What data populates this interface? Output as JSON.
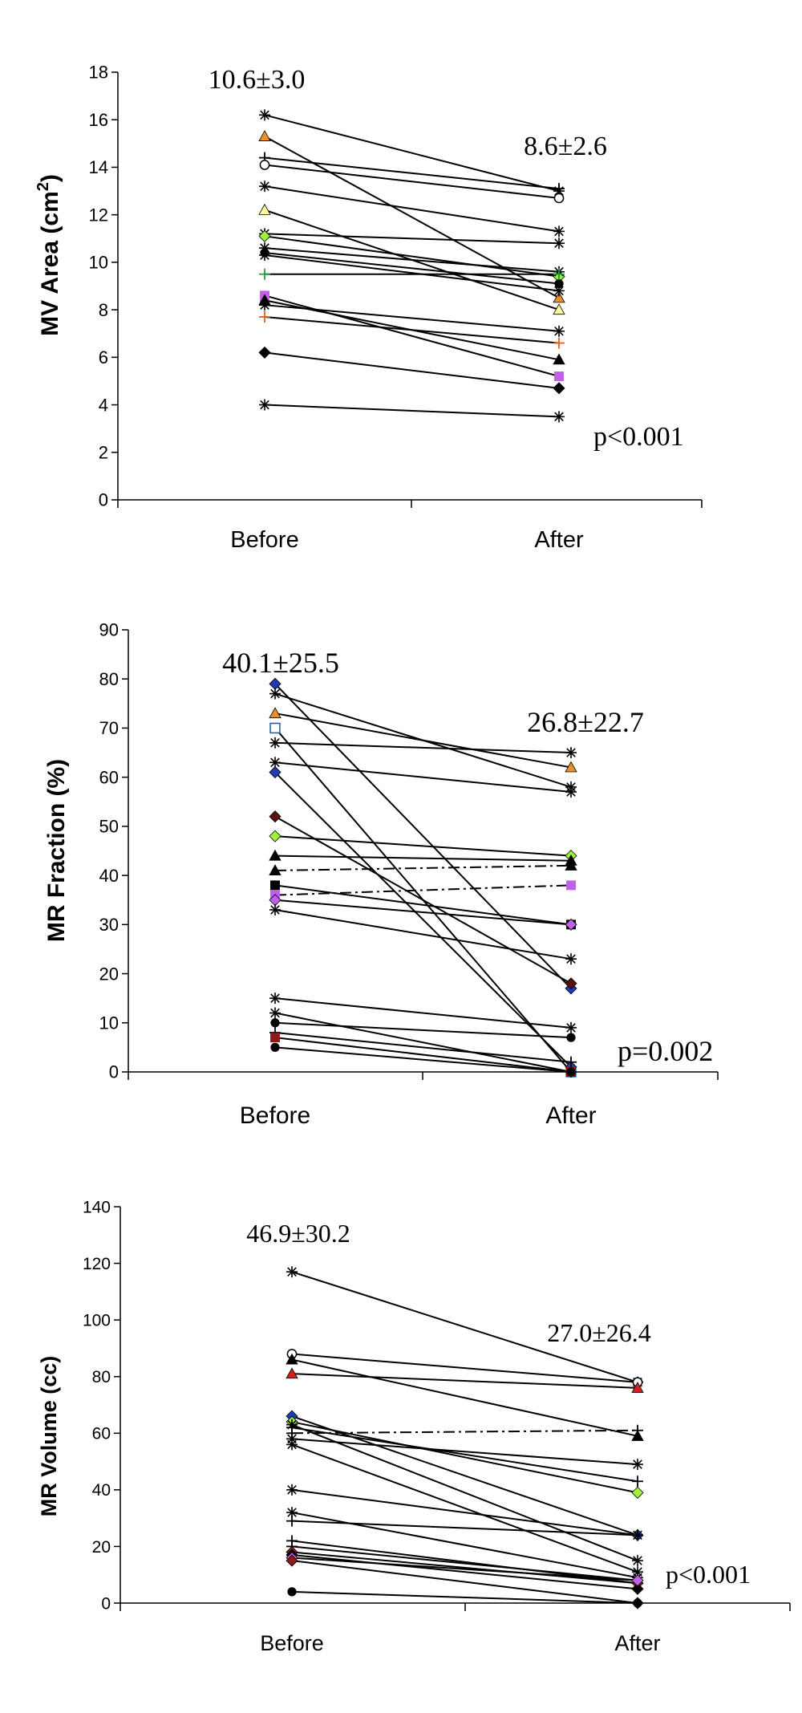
{
  "chart_data": [
    {
      "type": "line",
      "ylabel": "MV Area (cm²)",
      "xlabel": "",
      "categories": [
        "Before",
        "After"
      ],
      "ylim": [
        0,
        18
      ],
      "yticks": [
        "0",
        "2",
        "4",
        "6",
        "8",
        "10",
        "12",
        "14",
        "16",
        "18"
      ],
      "grid": false,
      "annotations": {
        "before_stat": "10.6±3.0",
        "after_stat": "8.6±2.6",
        "pvalue": "p<0.001"
      },
      "series": [
        {
          "values": [
            16.2,
            13.0
          ],
          "marker": "asterisk",
          "color": "#000000"
        },
        {
          "values": [
            15.3,
            8.5
          ],
          "marker": "triangle",
          "color": "#E8902A"
        },
        {
          "values": [
            14.4,
            13.1
          ],
          "marker": "plus",
          "color": "#000000"
        },
        {
          "values": [
            14.1,
            12.7
          ],
          "marker": "circle-open",
          "color": "#000000"
        },
        {
          "values": [
            13.2,
            11.3
          ],
          "marker": "asterisk",
          "color": "#000000"
        },
        {
          "values": [
            12.2,
            8.0
          ],
          "marker": "triangle",
          "color": "#FFF7A0"
        },
        {
          "values": [
            11.2,
            10.8
          ],
          "marker": "asterisk",
          "color": "#000000"
        },
        {
          "values": [
            11.1,
            9.4
          ],
          "marker": "diamond",
          "color": "#9EF23A"
        },
        {
          "values": [
            10.6,
            9.6
          ],
          "marker": "asterisk",
          "color": "#000000"
        },
        {
          "values": [
            10.4,
            9.1
          ],
          "marker": "circle",
          "color": "#000000"
        },
        {
          "values": [
            10.3,
            8.8
          ],
          "marker": "asterisk",
          "color": "#000000"
        },
        {
          "values": [
            9.5,
            9.5
          ],
          "marker": "plus",
          "color": "#20A040"
        },
        {
          "values": [
            8.6,
            5.2
          ],
          "marker": "square",
          "color": "#C060E8"
        },
        {
          "values": [
            8.4,
            5.9
          ],
          "marker": "triangle",
          "color": "#000000"
        },
        {
          "values": [
            8.2,
            7.1
          ],
          "marker": "asterisk",
          "color": "#000000"
        },
        {
          "values": [
            7.7,
            6.6
          ],
          "marker": "plus",
          "color": "#E06020"
        },
        {
          "values": [
            6.2,
            4.7
          ],
          "marker": "diamond",
          "color": "#000000"
        },
        {
          "values": [
            4.0,
            3.5
          ],
          "marker": "asterisk",
          "color": "#000000"
        }
      ]
    },
    {
      "type": "line",
      "ylabel": "MR Fraction (%)",
      "xlabel": "",
      "categories": [
        "Before",
        "After"
      ],
      "ylim": [
        0,
        90
      ],
      "yticks": [
        "0",
        "10",
        "20",
        "30",
        "40",
        "50",
        "60",
        "70",
        "80",
        "90"
      ],
      "grid": false,
      "annotations": {
        "before_stat": "40.1±25.5",
        "after_stat": "26.8±22.7",
        "pvalue": "p=0.002"
      },
      "series": [
        {
          "values": [
            79,
            17
          ],
          "marker": "diamond",
          "color": "#1E3CB4"
        },
        {
          "values": [
            77,
            58
          ],
          "marker": "asterisk",
          "color": "#000000"
        },
        {
          "values": [
            73,
            62
          ],
          "marker": "triangle",
          "color": "#E8902A"
        },
        {
          "values": [
            70,
            0
          ],
          "marker": "square-open",
          "color": "#1E5AA0"
        },
        {
          "values": [
            67,
            65
          ],
          "marker": "asterisk",
          "color": "#000000"
        },
        {
          "values": [
            63,
            57
          ],
          "marker": "asterisk",
          "color": "#000000"
        },
        {
          "values": [
            61,
            1
          ],
          "marker": "diamond",
          "color": "#1E3CB4"
        },
        {
          "values": [
            52,
            18
          ],
          "marker": "diamond",
          "color": "#5A1010"
        },
        {
          "values": [
            48,
            44
          ],
          "marker": "diamond",
          "color": "#9EF23A"
        },
        {
          "values": [
            44,
            43
          ],
          "marker": "triangle",
          "color": "#000000"
        },
        {
          "values": [
            41,
            42
          ],
          "marker": "triangle",
          "color": "#000000",
          "dash": "dashdot"
        },
        {
          "values": [
            38,
            30
          ],
          "marker": "square",
          "color": "#000000"
        },
        {
          "values": [
            36,
            38
          ],
          "marker": "square",
          "color": "#C060E8",
          "dash": "dashdot"
        },
        {
          "values": [
            35,
            30
          ],
          "marker": "diamond",
          "color": "#C060E8"
        },
        {
          "values": [
            33,
            23
          ],
          "marker": "asterisk",
          "color": "#000000"
        },
        {
          "values": [
            15,
            9
          ],
          "marker": "asterisk",
          "color": "#000000"
        },
        {
          "values": [
            12,
            0
          ],
          "marker": "asterisk",
          "color": "#000000"
        },
        {
          "values": [
            10,
            7
          ],
          "marker": "circle",
          "color": "#000000"
        },
        {
          "values": [
            8,
            2
          ],
          "marker": "plus",
          "color": "#000000"
        },
        {
          "values": [
            7,
            0
          ],
          "marker": "square",
          "color": "#8B1A1A"
        },
        {
          "values": [
            5,
            0
          ],
          "marker": "circle",
          "color": "#000000"
        }
      ]
    },
    {
      "type": "line",
      "ylabel": "MR Volume (cc)",
      "xlabel": "",
      "categories": [
        "Before",
        "After"
      ],
      "ylim": [
        0,
        140
      ],
      "yticks": [
        "0",
        "20",
        "40",
        "60",
        "80",
        "100",
        "120",
        "140"
      ],
      "grid": false,
      "annotations": {
        "before_stat": "46.9±30.2",
        "after_stat": "27.0±26.4",
        "pvalue": "p<0.001"
      },
      "series": [
        {
          "values": [
            117,
            78
          ],
          "marker": "asterisk",
          "color": "#000000"
        },
        {
          "values": [
            88,
            78
          ],
          "marker": "circle-open",
          "color": "#000000"
        },
        {
          "values": [
            86,
            59
          ],
          "marker": "triangle",
          "color": "#000000"
        },
        {
          "values": [
            81,
            76
          ],
          "marker": "triangle",
          "color": "#D02020"
        },
        {
          "values": [
            66,
            24
          ],
          "marker": "diamond",
          "color": "#1E3CB4"
        },
        {
          "values": [
            64,
            39
          ],
          "marker": "diamond",
          "color": "#9EF23A"
        },
        {
          "values": [
            63,
            15
          ],
          "marker": "asterisk",
          "color": "#000000"
        },
        {
          "values": [
            62,
            43
          ],
          "marker": "plus",
          "color": "#000000"
        },
        {
          "values": [
            60,
            61
          ],
          "marker": "plus",
          "color": "#000000",
          "dash": "dashdot"
        },
        {
          "values": [
            58,
            49
          ],
          "marker": "asterisk",
          "color": "#5050D0"
        },
        {
          "values": [
            56,
            11
          ],
          "marker": "asterisk",
          "color": "#C03020"
        },
        {
          "values": [
            40,
            24
          ],
          "marker": "asterisk",
          "color": "#000000"
        },
        {
          "values": [
            32,
            9
          ],
          "marker": "asterisk",
          "color": "#000000"
        },
        {
          "values": [
            29,
            24
          ],
          "marker": "plus",
          "color": "#000000"
        },
        {
          "values": [
            22,
            7
          ],
          "marker": "plus",
          "color": "#000000"
        },
        {
          "values": [
            20,
            8
          ],
          "marker": "plus",
          "color": "#000000"
        },
        {
          "values": [
            18,
            7
          ],
          "marker": "diamond",
          "color": "#8B1A1A"
        },
        {
          "values": [
            17,
            5
          ],
          "marker": "diamond",
          "color": "#000000"
        },
        {
          "values": [
            16,
            8
          ],
          "marker": "diamond",
          "color": "#C060E8"
        },
        {
          "values": [
            15,
            0
          ],
          "marker": "diamond",
          "color": "#8B1A1A"
        },
        {
          "values": [
            4,
            0
          ],
          "marker": "circle",
          "color": "#000000"
        }
      ]
    }
  ]
}
